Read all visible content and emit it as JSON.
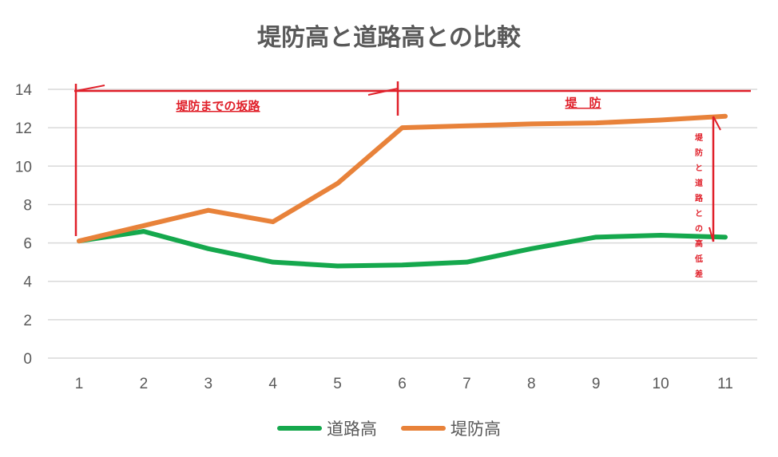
{
  "chart_data": {
    "type": "line",
    "title": "堤防高と道路高との比較",
    "xlabel": "",
    "ylabel": "",
    "x": [
      1,
      2,
      3,
      4,
      5,
      6,
      7,
      8,
      9,
      10,
      11
    ],
    "ylim": [
      0,
      14
    ],
    "yticks": [
      0,
      2,
      4,
      6,
      8,
      10,
      12,
      14
    ],
    "grid": true,
    "legend_position": "bottom",
    "series": [
      {
        "name": "道路高",
        "color": "#15a84d",
        "values": [
          6.1,
          6.6,
          5.7,
          5.0,
          4.8,
          4.85,
          5.0,
          5.7,
          6.3,
          6.4,
          6.3
        ]
      },
      {
        "name": "堤防高",
        "color": "#e8823a",
        "values": [
          6.1,
          6.9,
          7.7,
          7.1,
          9.1,
          12.0,
          12.1,
          12.2,
          12.25,
          12.4,
          12.6
        ]
      }
    ],
    "annotations": {
      "slope": "堤防までの坂路",
      "levee": "堤　防",
      "difference": "堤防と道路との高低差",
      "color": "#e0202a"
    }
  }
}
